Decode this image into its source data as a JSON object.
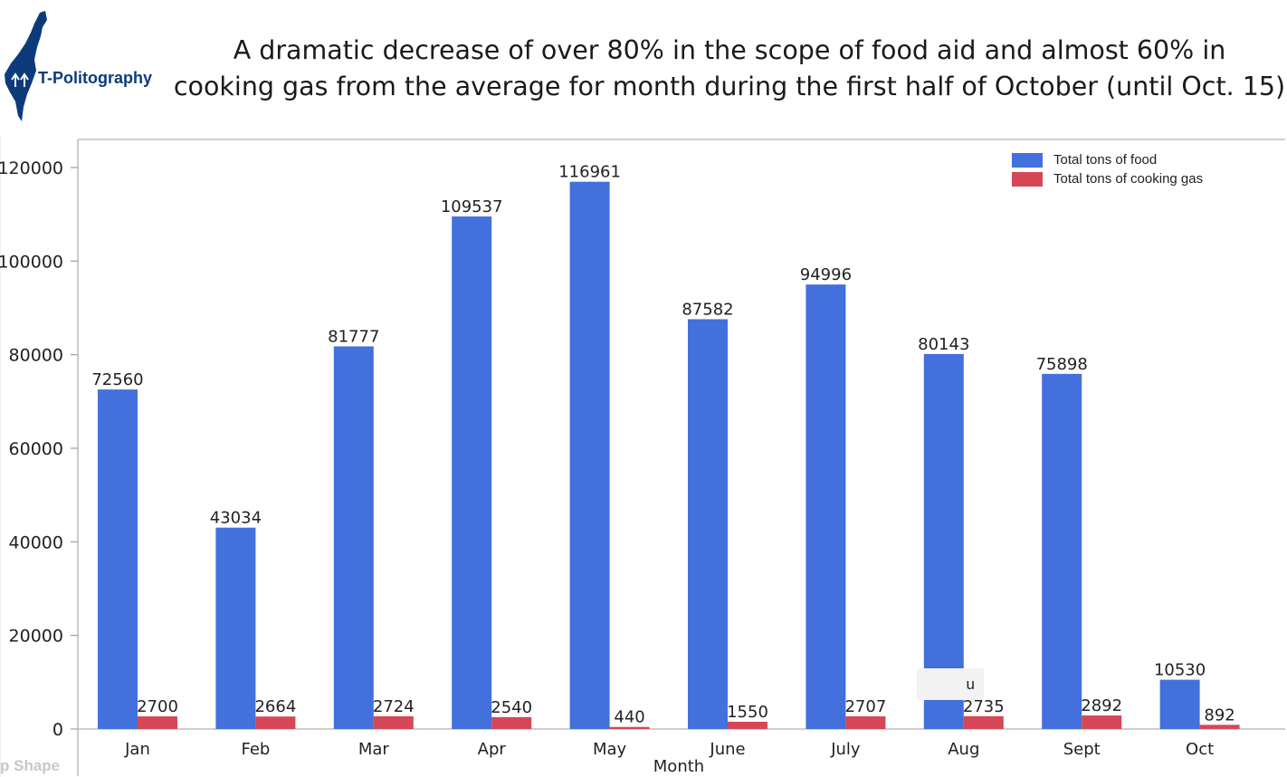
{
  "brand": {
    "name": "T-Politography",
    "logo_icon": "israel-map-icon",
    "map_color": "#0d3b7a"
  },
  "title": {
    "line1": "A dramatic decrease of over 80% in the scope of food aid and almost 60% in",
    "line2": "cooking gas from the average for month during the first half of October (until Oct. 15)"
  },
  "bottom_fragment": "p Shape",
  "tooltip_text": "u",
  "chart_data": {
    "type": "bar",
    "categories": [
      "Jan",
      "Feb",
      "Mar",
      "Apr",
      "May",
      "June",
      "July",
      "Aug",
      "Sept",
      "Oct"
    ],
    "series": [
      {
        "name": "Total tons of food",
        "color": "#4370dc",
        "values": [
          72560,
          43034,
          81777,
          109537,
          116961,
          87582,
          94996,
          80143,
          75898,
          10530
        ]
      },
      {
        "name": "Total tons of cooking gas",
        "color": "#d54757",
        "values": [
          2700,
          2664,
          2724,
          2540,
          440,
          1550,
          2707,
          2735,
          2892,
          892
        ]
      }
    ],
    "xlabel": "Month",
    "ylabel": "",
    "ylim": [
      0,
      126000
    ],
    "yticks": [
      0,
      20000,
      40000,
      60000,
      80000,
      100000,
      120000
    ],
    "grid": false,
    "legend_position": "top-right"
  }
}
